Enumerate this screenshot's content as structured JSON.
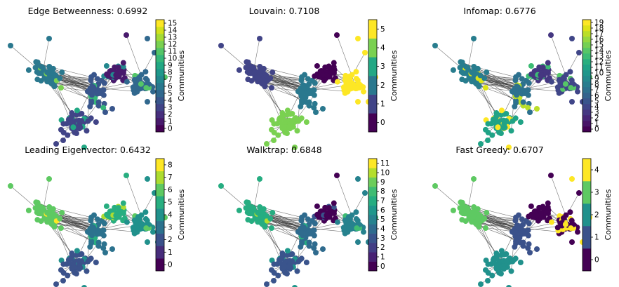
{
  "chart_data": [
    {
      "type": "scatter",
      "title": "Edge Betweenness: 0.6992",
      "colorbar": {
        "label": "Communities",
        "ticks": [
          "0",
          "1",
          "2",
          "3",
          "4",
          "5",
          "6",
          "7",
          "8",
          "9",
          "10",
          "11",
          "12",
          "13",
          "14",
          "15"
        ],
        "n": 16,
        "palette": [
          "#440154",
          "#481a6c",
          "#472f7d",
          "#414487",
          "#39568c",
          "#31688e",
          "#2a788e",
          "#23888e",
          "#1f988b",
          "#22a884",
          "#35b779",
          "#54c568",
          "#7ad151",
          "#a5db36",
          "#d2e21b",
          "#fde725"
        ]
      }
    },
    {
      "type": "scatter",
      "title": "Louvain: 0.7108",
      "colorbar": {
        "label": "Communities",
        "ticks": [
          "0",
          "1",
          "2",
          "3",
          "4",
          "5"
        ],
        "n": 6,
        "palette": [
          "#440154",
          "#414487",
          "#2a788e",
          "#22a884",
          "#7ad151",
          "#fde725"
        ]
      }
    },
    {
      "type": "scatter",
      "title": "Infomap: 0.6776",
      "colorbar": {
        "label": "Communities",
        "ticks": [
          "0",
          "1",
          "2",
          "3",
          "4",
          "5",
          "6",
          "7",
          "8",
          "9",
          "10",
          "11",
          "12",
          "13",
          "14",
          "15",
          "16",
          "17",
          "18",
          "19"
        ],
        "n": 20,
        "palette": [
          "#440154",
          "#481467",
          "#482576",
          "#453781",
          "#404688",
          "#39558c",
          "#33638d",
          "#2d718e",
          "#287d8e",
          "#238a8d",
          "#1f968b",
          "#20a386",
          "#29af7f",
          "#3dbc74",
          "#56c667",
          "#75d054",
          "#95d840",
          "#bade28",
          "#dde318",
          "#fde725"
        ]
      }
    },
    {
      "type": "scatter",
      "title": "Leading Eigenvector: 0.6432",
      "colorbar": {
        "label": "Communities",
        "ticks": [
          "0",
          "1",
          "2",
          "3",
          "4",
          "5",
          "6",
          "7",
          "8"
        ],
        "n": 9,
        "palette": [
          "#440154",
          "#472d7b",
          "#3b528b",
          "#2c728e",
          "#21918c",
          "#28ae80",
          "#5ec962",
          "#addc30",
          "#fde725"
        ]
      }
    },
    {
      "type": "scatter",
      "title": "Walktrap: 0.6848",
      "colorbar": {
        "label": "Communities",
        "ticks": [
          "0",
          "1",
          "2",
          "3",
          "4",
          "5",
          "6",
          "7",
          "8",
          "9",
          "10",
          "11"
        ],
        "n": 12,
        "palette": [
          "#440154",
          "#482173",
          "#433e85",
          "#3a548c",
          "#2f6b8e",
          "#26828e",
          "#1f978b",
          "#26ad81",
          "#3fbc73",
          "#6ccd5a",
          "#b4de2c",
          "#fde725"
        ]
      }
    },
    {
      "type": "scatter",
      "title": "Fast Greedy: 0.6707",
      "colorbar": {
        "label": "Communities",
        "ticks": [
          "0",
          "1",
          "2",
          "3",
          "4"
        ],
        "n": 5,
        "palette": [
          "#440154",
          "#3b528b",
          "#21918c",
          "#5ec962",
          "#fde725"
        ]
      }
    }
  ]
}
